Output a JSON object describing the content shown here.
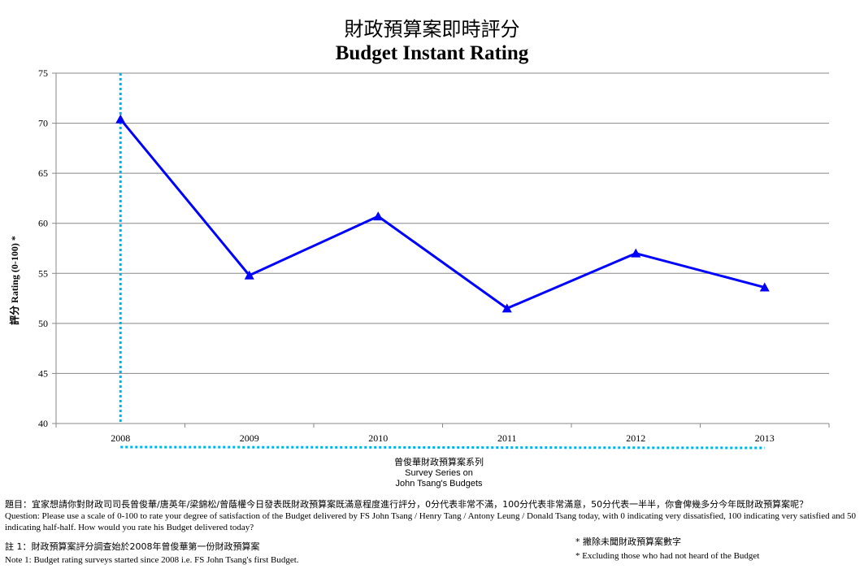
{
  "title_zh": "財政預算案即時評分",
  "title_en": "Budget Instant Rating",
  "chart_data": {
    "type": "line",
    "categories": [
      "2008",
      "2009",
      "2010",
      "2011",
      "2012",
      "2013"
    ],
    "values": [
      70.4,
      54.8,
      60.7,
      51.5,
      57.0,
      53.6
    ],
    "ylim": [
      40,
      75
    ],
    "yticks": [
      "40",
      "45",
      "50",
      "55",
      "60",
      "65",
      "70",
      "75"
    ],
    "ylabel": "評分 Rating (0-100) *",
    "xlabel_lines": [
      "曾俊華財政預算案系列",
      "Survey Series on",
      "John Tsang's Budgets"
    ],
    "grid": true,
    "line_color": "#0000FF",
    "marker": "triangle",
    "series_marker_color": "#00B0F0"
  },
  "notes": {
    "question_zh": "題目：宜家想請你對財政司司長曾俊華/唐英年/梁錦松/曾蔭權今日發表既財政預算案既滿意程度進行評分，0分代表非常不滿，100分代表非常滿意，50分代表一半半，你會俾幾多分今年既財政預算案呢？",
    "question_en": "Question: Please use a scale of 0-100 to rate your degree of satisfaction of the Budget delivered by FS John Tsang / Henry Tang / Antony Leung / Donald Tsang today, with 0 indicating very dissatisfied, 100 indicating very satisfied and 50 indicating half-half. How would you rate his Budget delivered today?",
    "note1_zh": "註 1：財政預算案評分調查始於2008年曾俊華第一份財政預算案",
    "note1_en": "Note 1: Budget rating surveys started since 2008 i.e.  FS John Tsang's first Budget.",
    "exclude_zh": "* 撇除未聞財政預算案數字",
    "exclude_en": "* Excluding  those who had not heard of the Budget"
  }
}
